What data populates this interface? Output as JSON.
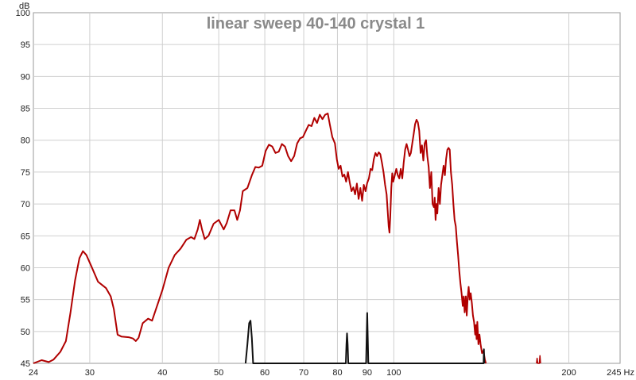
{
  "chart_data": {
    "type": "line",
    "title": "linear sweep 40-140 crystal 1",
    "ylabel": "dB",
    "xunit": "Hz",
    "x_scale": "log",
    "xlim": [
      24,
      245
    ],
    "ylim": [
      45,
      100
    ],
    "grid": true,
    "x_ticks": [
      {
        "value": 24,
        "label": "24"
      },
      {
        "value": 30,
        "label": "30"
      },
      {
        "value": 40,
        "label": "40"
      },
      {
        "value": 50,
        "label": "50"
      },
      {
        "value": 60,
        "label": "60"
      },
      {
        "value": 70,
        "label": "70"
      },
      {
        "value": 80,
        "label": "80"
      },
      {
        "value": 90,
        "label": "90"
      },
      {
        "value": 100,
        "label": "100"
      },
      {
        "value": 200,
        "label": "200"
      },
      {
        "value": 245,
        "label": "245 Hz"
      }
    ],
    "y_ticks": [
      45,
      50,
      55,
      60,
      65,
      70,
      75,
      80,
      85,
      90,
      95,
      100
    ],
    "series": [
      {
        "color": "#b00000",
        "points": [
          [
            24.0,
            45.0
          ],
          [
            24.8,
            45.5
          ],
          [
            25.5,
            45.2
          ],
          [
            26.0,
            45.6
          ],
          [
            26.7,
            46.8
          ],
          [
            27.3,
            48.5
          ],
          [
            27.8,
            53.0
          ],
          [
            28.3,
            58.0
          ],
          [
            28.8,
            61.5
          ],
          [
            29.2,
            62.6
          ],
          [
            29.6,
            62.0
          ],
          [
            30.2,
            60.2
          ],
          [
            31.0,
            57.8
          ],
          [
            31.5,
            57.3
          ],
          [
            32.0,
            56.8
          ],
          [
            32.6,
            55.5
          ],
          [
            33.0,
            53.5
          ],
          [
            33.5,
            49.5
          ],
          [
            34.0,
            49.2
          ],
          [
            35.0,
            49.1
          ],
          [
            35.6,
            48.9
          ],
          [
            36.0,
            48.5
          ],
          [
            36.4,
            49.0
          ],
          [
            37.0,
            51.3
          ],
          [
            37.8,
            52.0
          ],
          [
            38.4,
            51.7
          ],
          [
            39.0,
            53.5
          ],
          [
            40.0,
            56.5
          ],
          [
            41.0,
            60.0
          ],
          [
            42.0,
            62.0
          ],
          [
            43.0,
            63.0
          ],
          [
            44.0,
            64.4
          ],
          [
            44.8,
            64.8
          ],
          [
            45.4,
            64.5
          ],
          [
            46.0,
            66.0
          ],
          [
            46.4,
            67.5
          ],
          [
            46.8,
            66.0
          ],
          [
            47.3,
            64.5
          ],
          [
            48.0,
            65.0
          ],
          [
            49.0,
            66.9
          ],
          [
            50.0,
            67.5
          ],
          [
            51.0,
            66.0
          ],
          [
            51.6,
            67.0
          ],
          [
            52.4,
            69.0
          ],
          [
            53.2,
            69.0
          ],
          [
            53.8,
            67.5
          ],
          [
            54.4,
            69.0
          ],
          [
            55.0,
            72.0
          ],
          [
            56.0,
            72.5
          ],
          [
            57.0,
            74.5
          ],
          [
            57.8,
            75.8
          ],
          [
            58.6,
            75.7
          ],
          [
            59.4,
            76.0
          ],
          [
            60.2,
            78.3
          ],
          [
            61.0,
            79.3
          ],
          [
            61.8,
            79.0
          ],
          [
            62.6,
            78.0
          ],
          [
            63.4,
            78.2
          ],
          [
            64.2,
            79.4
          ],
          [
            65.0,
            79.0
          ],
          [
            65.8,
            77.5
          ],
          [
            66.6,
            76.7
          ],
          [
            67.4,
            77.5
          ],
          [
            68.2,
            79.5
          ],
          [
            69.0,
            80.3
          ],
          [
            69.8,
            80.5
          ],
          [
            70.6,
            81.5
          ],
          [
            71.4,
            82.4
          ],
          [
            72.2,
            82.2
          ],
          [
            73.0,
            83.5
          ],
          [
            73.8,
            82.7
          ],
          [
            74.6,
            84.0
          ],
          [
            75.4,
            83.3
          ],
          [
            76.2,
            84.0
          ],
          [
            77.0,
            84.2
          ],
          [
            77.6,
            82.5
          ],
          [
            78.4,
            80.5
          ],
          [
            79.2,
            79.5
          ],
          [
            79.8,
            77.0
          ],
          [
            80.4,
            75.5
          ],
          [
            81.0,
            76.0
          ],
          [
            81.6,
            74.3
          ],
          [
            82.2,
            74.6
          ],
          [
            82.8,
            73.5
          ],
          [
            83.4,
            75.0
          ],
          [
            84.0,
            73.3
          ],
          [
            84.6,
            72.0
          ],
          [
            85.2,
            72.6
          ],
          [
            85.8,
            71.5
          ],
          [
            86.4,
            73.2
          ],
          [
            87.0,
            70.8
          ],
          [
            87.6,
            72.5
          ],
          [
            88.2,
            70.5
          ],
          [
            88.8,
            73.0
          ],
          [
            89.4,
            72.0
          ],
          [
            90.0,
            73.3
          ],
          [
            90.6,
            74.0
          ],
          [
            91.2,
            75.5
          ],
          [
            91.8,
            75.3
          ],
          [
            92.4,
            77.0
          ],
          [
            93.0,
            78.0
          ],
          [
            93.6,
            77.5
          ],
          [
            94.2,
            78.1
          ],
          [
            94.8,
            77.8
          ],
          [
            95.4,
            76.5
          ],
          [
            96.0,
            75.0
          ],
          [
            96.6,
            73.0
          ],
          [
            97.2,
            71.5
          ],
          [
            97.6,
            69.0
          ],
          [
            98.0,
            66.5
          ],
          [
            98.3,
            65.5
          ],
          [
            98.6,
            68.0
          ],
          [
            99.0,
            72.5
          ],
          [
            99.4,
            74.8
          ],
          [
            99.8,
            73.5
          ],
          [
            100.4,
            74.5
          ],
          [
            101.0,
            75.5
          ],
          [
            101.6,
            74.5
          ],
          [
            102.2,
            74.0
          ],
          [
            102.8,
            75.5
          ],
          [
            103.4,
            74.0
          ],
          [
            104.0,
            76.5
          ],
          [
            104.6,
            78.5
          ],
          [
            105.2,
            79.4
          ],
          [
            105.8,
            78.5
          ],
          [
            106.4,
            77.5
          ],
          [
            107.0,
            78.0
          ],
          [
            107.6,
            79.5
          ],
          [
            108.2,
            81.0
          ],
          [
            108.8,
            82.5
          ],
          [
            109.4,
            83.2
          ],
          [
            110.0,
            82.8
          ],
          [
            110.6,
            81.5
          ],
          [
            111.2,
            78.0
          ],
          [
            111.8,
            79.2
          ],
          [
            112.4,
            76.8
          ],
          [
            113.0,
            79.5
          ],
          [
            113.6,
            80.0
          ],
          [
            114.2,
            77.5
          ],
          [
            114.8,
            75.8
          ],
          [
            115.4,
            72.5
          ],
          [
            116.0,
            75.0
          ],
          [
            116.6,
            70.0
          ],
          [
            117.2,
            69.5
          ],
          [
            117.6,
            71.0
          ],
          [
            118.0,
            67.5
          ],
          [
            118.4,
            70.0
          ],
          [
            118.8,
            68.5
          ],
          [
            119.4,
            72.5
          ],
          [
            120.0,
            70.0
          ],
          [
            120.6,
            73.0
          ],
          [
            121.2,
            74.5
          ],
          [
            121.8,
            76.0
          ],
          [
            122.4,
            74.5
          ],
          [
            123.0,
            77.0
          ],
          [
            123.6,
            78.5
          ],
          [
            124.2,
            78.8
          ],
          [
            124.8,
            78.5
          ],
          [
            125.4,
            75.0
          ],
          [
            126.0,
            73.0
          ],
          [
            126.6,
            70.0
          ],
          [
            127.2,
            67.5
          ],
          [
            127.8,
            66.5
          ],
          [
            128.4,
            64.0
          ],
          [
            129.0,
            62.0
          ],
          [
            129.6,
            59.5
          ],
          [
            130.2,
            57.5
          ],
          [
            130.8,
            56.0
          ],
          [
            131.4,
            54.0
          ],
          [
            131.9,
            55.5
          ],
          [
            132.4,
            53.0
          ],
          [
            133.0,
            55.5
          ],
          [
            133.5,
            52.5
          ],
          [
            134.0,
            55.3
          ],
          [
            134.5,
            57.0
          ],
          [
            135.0,
            55.0
          ],
          [
            135.6,
            56.0
          ],
          [
            136.2,
            54.5
          ],
          [
            136.8,
            52.5
          ],
          [
            137.4,
            51.5
          ],
          [
            138.0,
            49.5
          ],
          [
            138.4,
            51.0
          ],
          [
            138.8,
            48.8
          ],
          [
            139.2,
            51.5
          ],
          [
            139.8,
            48.0
          ],
          [
            140.4,
            49.5
          ],
          [
            141.0,
            48.0
          ],
          [
            141.8,
            46.6
          ],
          [
            142.6,
            47.0
          ],
          [
            143.4,
            45.6
          ],
          [
            144.0,
            45.0
          ]
        ]
      },
      {
        "color": "#111111",
        "points": [
          [
            55.6,
            45.0
          ],
          [
            56.0,
            48.0
          ],
          [
            56.4,
            51.3
          ],
          [
            56.7,
            51.7
          ],
          [
            57.0,
            49.0
          ],
          [
            57.3,
            45.0
          ],
          [
            82.7,
            45.0
          ],
          [
            82.9,
            48.0
          ],
          [
            83.1,
            49.7
          ],
          [
            83.3,
            48.0
          ],
          [
            83.5,
            45.0
          ],
          [
            89.6,
            45.0
          ],
          [
            89.8,
            49.0
          ],
          [
            90.0,
            52.9
          ],
          [
            90.2,
            49.0
          ],
          [
            90.4,
            45.0
          ],
          [
            142.7,
            45.0
          ],
          [
            142.9,
            47.2
          ],
          [
            143.1,
            45.0
          ]
        ]
      }
    ],
    "extra_fragments": [
      {
        "color": "#b00000",
        "points": [
          [
            176.0,
            45.0
          ],
          [
            176.4,
            45.8
          ],
          [
            176.8,
            45.0
          ],
          [
            178.0,
            45.0
          ],
          [
            178.4,
            46.2
          ],
          [
            178.8,
            45.0
          ]
        ]
      }
    ]
  }
}
